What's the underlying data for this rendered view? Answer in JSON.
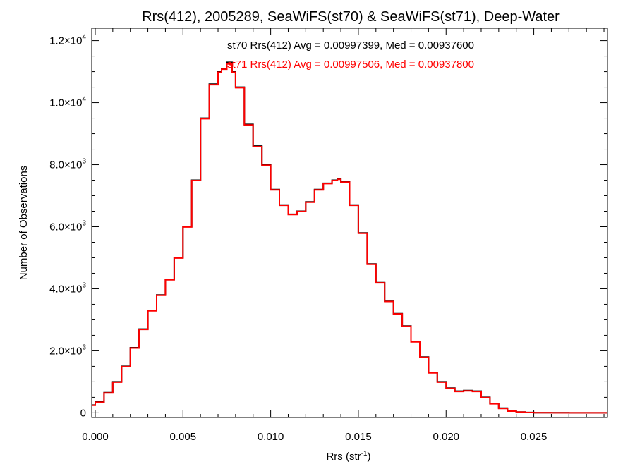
{
  "chart_data": {
    "type": "line",
    "title": "Rrs(412), 2005289, SeaWiFS(st70) & SeaWiFS(st71), Deep-Water",
    "xlabel": {
      "main": "Rrs (str",
      "sup": "-1",
      "close": ")"
    },
    "ylabel": "Number of Observations",
    "xlim": [
      -0.0002,
      0.0292
    ],
    "ylim": [
      -150,
      12400
    ],
    "x_ticks": [
      {
        "value": 0.0,
        "label": "0.000"
      },
      {
        "value": 0.005,
        "label": "0.005"
      },
      {
        "value": 0.01,
        "label": "0.010"
      },
      {
        "value": 0.015,
        "label": "0.015"
      },
      {
        "value": 0.02,
        "label": "0.020"
      },
      {
        "value": 0.025,
        "label": "0.025"
      }
    ],
    "y_ticks": [
      {
        "value": 0,
        "base": "0",
        "exp": ""
      },
      {
        "value": 2000,
        "base": "2.0×10",
        "exp": "3"
      },
      {
        "value": 4000,
        "base": "4.0×10",
        "exp": "3"
      },
      {
        "value": 6000,
        "base": "6.0×10",
        "exp": "3"
      },
      {
        "value": 8000,
        "base": "8.0×10",
        "exp": "3"
      },
      {
        "value": 10000,
        "base": "1.0×10",
        "exp": "4"
      },
      {
        "value": 12000,
        "base": "1.2×10",
        "exp": "4"
      }
    ],
    "grid": false,
    "annotations": [
      {
        "text": "st70 Rrs(412) Avg = 0.00997399, Med = 0.00937600",
        "color": "#000000"
      },
      {
        "text": "st71 Rrs(412) Avg = 0.00997506, Med = 0.00937800",
        "color": "#ff0000"
      }
    ],
    "series": [
      {
        "color": "#000000",
        "x": [
          -0.0002,
          0.0,
          0.0005,
          0.001,
          0.0015,
          0.002,
          0.0025,
          0.003,
          0.0035,
          0.004,
          0.0045,
          0.005,
          0.0055,
          0.006,
          0.0065,
          0.007,
          0.0072,
          0.0075,
          0.0078,
          0.008,
          0.0085,
          0.009,
          0.0095,
          0.01,
          0.0105,
          0.011,
          0.0115,
          0.012,
          0.0125,
          0.013,
          0.0135,
          0.0138,
          0.014,
          0.0145,
          0.015,
          0.0155,
          0.016,
          0.0165,
          0.017,
          0.0175,
          0.018,
          0.0185,
          0.019,
          0.0195,
          0.02,
          0.0205,
          0.021,
          0.0215,
          0.022,
          0.0225,
          0.023,
          0.0235,
          0.024,
          0.0245,
          0.025,
          0.0255,
          0.026,
          0.027,
          0.028,
          0.0292
        ],
        "y": [
          250,
          350,
          650,
          1000,
          1500,
          2100,
          2700,
          3300,
          3800,
          4300,
          5000,
          6000,
          7500,
          9500,
          10600,
          11000,
          11100,
          11300,
          11000,
          10500,
          9300,
          8600,
          8000,
          7200,
          6700,
          6400,
          6500,
          6800,
          7200,
          7400,
          7500,
          7550,
          7450,
          6700,
          5800,
          4800,
          4200,
          3600,
          3200,
          2800,
          2300,
          1800,
          1300,
          1000,
          800,
          700,
          720,
          700,
          500,
          300,
          150,
          60,
          25,
          12,
          5,
          3,
          2,
          1,
          0,
          0
        ]
      },
      {
        "color": "#ff0000",
        "x": [
          -0.0002,
          0.0,
          0.0005,
          0.001,
          0.0015,
          0.002,
          0.0025,
          0.003,
          0.0035,
          0.004,
          0.0045,
          0.005,
          0.0055,
          0.006,
          0.0065,
          0.007,
          0.0072,
          0.0075,
          0.0078,
          0.008,
          0.0085,
          0.009,
          0.0095,
          0.01,
          0.0105,
          0.011,
          0.0115,
          0.012,
          0.0125,
          0.013,
          0.0135,
          0.0138,
          0.014,
          0.0145,
          0.015,
          0.0155,
          0.016,
          0.0165,
          0.017,
          0.0175,
          0.018,
          0.0185,
          0.019,
          0.0195,
          0.02,
          0.0205,
          0.021,
          0.0215,
          0.022,
          0.0225,
          0.023,
          0.0235,
          0.024,
          0.0245,
          0.025,
          0.0255,
          0.026,
          0.027,
          0.028,
          0.0292
        ],
        "y": [
          240,
          340,
          640,
          990,
          1490,
          2090,
          2690,
          3290,
          3790,
          4290,
          4990,
          5990,
          7490,
          9480,
          10580,
          10980,
          11080,
          11250,
          10980,
          10480,
          9280,
          8580,
          7980,
          7190,
          6690,
          6390,
          6490,
          6790,
          7190,
          7390,
          7490,
          7530,
          7440,
          6690,
          5790,
          4790,
          4190,
          3590,
          3190,
          2790,
          2290,
          1790,
          1290,
          990,
          790,
          690,
          710,
          690,
          490,
          290,
          140,
          55,
          22,
          10,
          4,
          2,
          1,
          0,
          0,
          0
        ]
      }
    ]
  }
}
